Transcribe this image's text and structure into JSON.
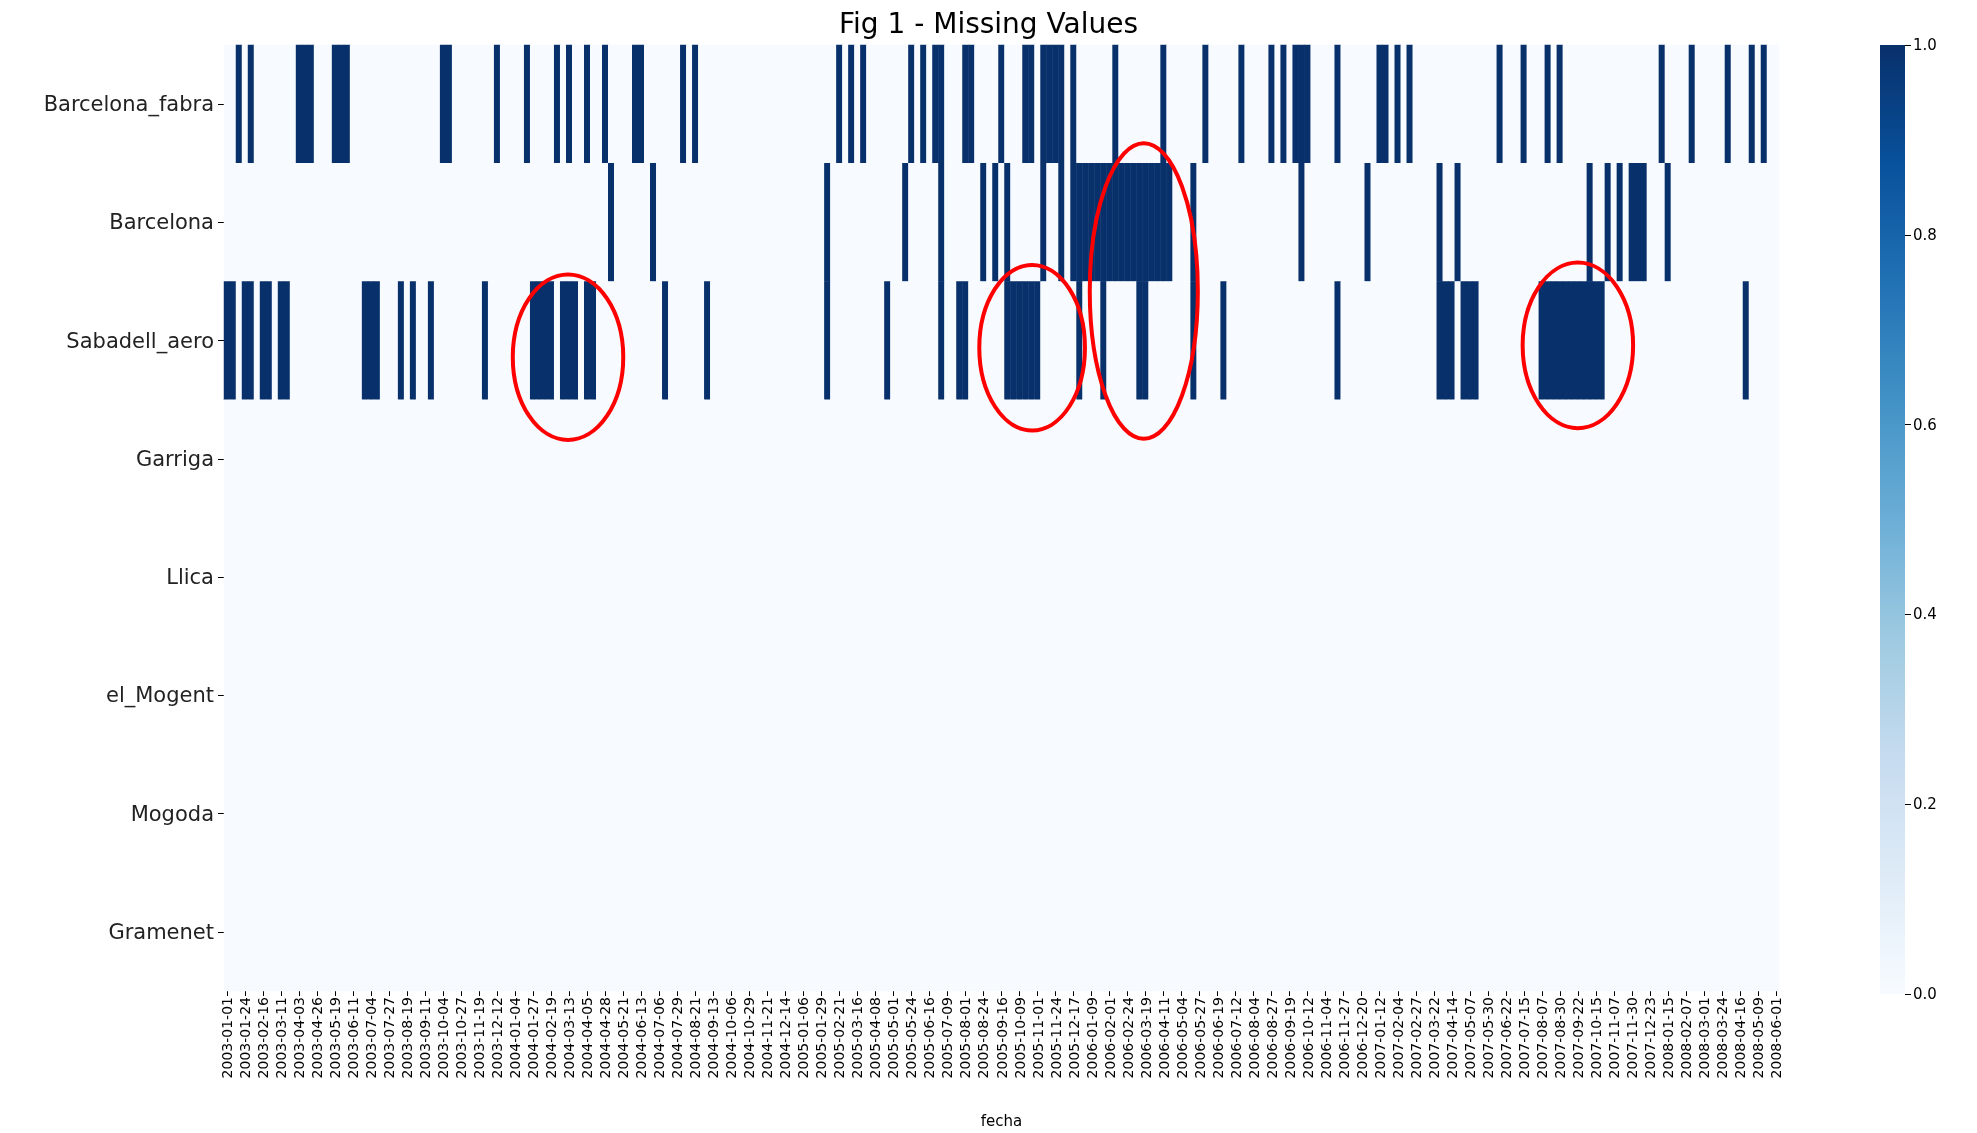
{
  "chart_data": {
    "type": "heatmap",
    "title": "Fig 1 - Missing Values",
    "xlabel": "fecha",
    "categories": [
      "2003-01-01",
      null,
      null,
      "2003-01-24",
      null,
      null,
      "2003-02-16",
      null,
      null,
      "2003-03-11",
      null,
      null,
      "2003-04-03",
      null,
      null,
      "2003-04-26",
      null,
      null,
      "2003-05-19",
      null,
      null,
      "2003-06-11",
      null,
      null,
      "2003-07-04",
      null,
      null,
      "2003-07-27",
      null,
      null,
      "2003-08-19",
      null,
      null,
      "2003-09-11",
      null,
      null,
      "2003-10-04",
      null,
      null,
      "2003-10-27",
      null,
      null,
      "2003-11-19",
      null,
      null,
      "2003-12-12",
      null,
      null,
      "2004-01-04",
      null,
      null,
      "2004-01-27",
      null,
      null,
      "2004-02-19",
      null,
      null,
      "2004-03-13",
      null,
      null,
      "2004-04-05",
      null,
      null,
      "2004-04-28",
      null,
      null,
      "2004-05-21",
      null,
      null,
      "2004-06-13",
      null,
      null,
      "2004-07-06",
      null,
      null,
      "2004-07-29",
      null,
      null,
      "2004-08-21",
      null,
      null,
      "2004-09-13",
      null,
      null,
      "2004-10-06",
      null,
      null,
      "2004-10-29",
      null,
      null,
      "2004-11-21",
      null,
      null,
      "2004-12-14",
      null,
      null,
      "2005-01-06",
      null,
      null,
      "2005-01-29",
      null,
      null,
      "2005-02-21",
      null,
      null,
      "2005-03-16",
      null,
      null,
      "2005-04-08",
      null,
      null,
      "2005-05-01",
      null,
      null,
      "2005-05-24",
      null,
      null,
      "2005-06-16",
      null,
      null,
      "2005-07-09",
      null,
      null,
      "2005-08-01",
      null,
      null,
      "2005-08-24",
      null,
      null,
      "2005-09-16",
      null,
      null,
      "2005-10-09",
      null,
      null,
      "2005-11-01",
      null,
      null,
      "2005-11-24",
      null,
      null,
      "2005-12-17",
      null,
      null,
      "2006-01-09",
      null,
      null,
      "2006-02-01",
      null,
      null,
      "2006-02-24",
      null,
      null,
      "2006-03-19",
      null,
      null,
      "2006-04-11",
      null,
      null,
      "2006-05-04",
      null,
      null,
      "2006-05-27",
      null,
      null,
      "2006-06-19",
      null,
      null,
      "2006-07-12",
      null,
      null,
      "2006-08-04",
      null,
      null,
      "2006-08-27",
      null,
      null,
      "2006-09-19",
      null,
      null,
      "2006-10-12",
      null,
      null,
      "2006-11-04",
      null,
      null,
      "2006-11-27",
      null,
      null,
      "2006-12-20",
      null,
      null,
      "2007-01-12",
      null,
      null,
      "2007-02-04",
      null,
      null,
      "2007-02-27",
      null,
      null,
      "2007-03-22",
      null,
      null,
      "2007-04-14",
      null,
      null,
      "2007-05-07",
      null,
      null,
      "2007-05-30",
      null,
      null,
      "2007-06-22",
      null,
      null,
      "2007-07-15",
      null,
      null,
      "2007-08-07",
      null,
      null,
      "2007-08-30",
      null,
      null,
      "2007-09-22",
      null,
      null,
      "2007-10-15",
      null,
      null,
      "2007-11-07",
      null,
      null,
      "2007-11-30",
      null,
      null,
      "2007-12-23",
      null,
      null,
      "2008-01-15",
      null,
      null,
      "2008-02-07",
      null,
      null,
      "2008-03-01",
      null,
      null,
      "2008-03-24",
      null,
      null,
      "2008-04-16",
      null,
      null,
      "2008-05-09",
      null,
      null,
      "2008-06-01"
    ],
    "y_categories": [
      "Barcelona_fabra",
      "Barcelona",
      "Sabadell_aero",
      "Garriga",
      "Llica",
      "el_Mogent",
      "Mogoda",
      "Gramenet"
    ],
    "cells": [
      [
        0,
        0,
        1,
        0,
        1,
        0,
        0,
        0,
        0,
        0,
        0,
        0,
        1,
        1,
        1,
        0,
        0,
        0,
        1,
        1,
        1,
        0,
        0,
        0,
        0,
        0,
        0,
        0,
        0,
        0,
        0,
        0,
        0,
        0,
        0,
        0,
        1,
        1,
        0,
        0,
        0,
        0,
        0,
        0,
        0,
        1,
        0,
        0,
        0,
        0,
        1,
        0,
        0,
        0,
        0,
        1,
        0,
        1,
        0,
        0,
        1,
        0,
        0,
        1,
        0,
        0,
        0,
        0,
        1,
        1,
        0,
        0,
        0,
        0,
        0,
        0,
        1,
        0,
        1,
        0,
        0,
        0,
        0,
        0,
        0,
        0,
        0,
        0,
        0,
        0,
        0,
        0,
        0,
        0,
        0,
        0,
        0,
        0,
        0,
        0,
        0,
        0,
        1,
        0,
        1,
        0,
        1,
        0,
        0,
        0,
        0,
        0,
        0,
        0,
        1,
        0,
        1,
        0,
        1,
        1,
        0,
        0,
        0,
        1,
        1,
        0,
        0,
        0,
        0,
        1,
        0,
        0,
        0,
        1,
        1,
        0,
        1,
        1,
        1,
        1,
        0,
        1,
        0,
        0,
        0,
        0,
        0,
        0,
        1,
        0,
        0,
        0,
        0,
        0,
        0,
        0,
        1,
        0,
        0,
        0,
        0,
        0,
        0,
        1,
        0,
        0,
        0,
        0,
        0,
        1,
        0,
        0,
        0,
        0,
        1,
        0,
        1,
        0,
        1,
        1,
        1,
        0,
        0,
        0,
        0,
        1,
        0,
        0,
        0,
        0,
        0,
        0,
        1,
        1,
        0,
        1,
        0,
        1,
        0,
        0,
        0,
        0,
        0,
        0,
        0,
        0,
        0,
        0,
        0,
        0,
        0,
        0,
        1,
        0,
        0,
        0,
        1,
        0,
        0,
        0,
        1,
        0,
        1,
        0,
        0,
        0,
        0,
        0,
        0,
        0,
        0,
        0,
        0,
        0,
        0,
        0,
        0,
        0,
        0,
        1,
        0,
        0,
        0,
        0,
        1,
        0,
        0,
        0,
        0,
        0,
        1,
        0,
        0,
        0,
        1,
        0,
        1,
        0,
        0
      ],
      [
        0,
        0,
        0,
        0,
        0,
        0,
        0,
        0,
        0,
        0,
        0,
        0,
        0,
        0,
        0,
        0,
        0,
        0,
        0,
        0,
        0,
        0,
        0,
        0,
        0,
        0,
        0,
        0,
        0,
        0,
        0,
        0,
        0,
        0,
        0,
        0,
        0,
        0,
        0,
        0,
        0,
        0,
        0,
        0,
        0,
        0,
        0,
        0,
        0,
        0,
        0,
        0,
        0,
        0,
        0,
        0,
        0,
        0,
        0,
        0,
        0,
        0,
        0,
        0,
        1,
        0,
        0,
        0,
        0,
        0,
        0,
        1,
        0,
        0,
        0,
        0,
        0,
        0,
        0,
        0,
        0,
        0,
        0,
        0,
        0,
        0,
        0,
        0,
        0,
        0,
        0,
        0,
        0,
        0,
        0,
        0,
        0,
        0,
        0,
        0,
        1,
        0,
        0,
        0,
        0,
        0,
        0,
        0,
        0,
        0,
        0,
        0,
        0,
        1,
        0,
        0,
        0,
        0,
        0,
        1,
        0,
        0,
        0,
        0,
        0,
        0,
        1,
        0,
        1,
        0,
        1,
        0,
        0,
        0,
        0,
        0,
        1,
        0,
        0,
        1,
        0,
        1,
        1,
        1,
        1,
        1,
        1,
        1,
        1,
        1,
        1,
        1,
        1,
        1,
        1,
        1,
        1,
        1,
        0,
        0,
        0,
        1,
        0,
        0,
        0,
        0,
        0,
        0,
        0,
        0,
        0,
        0,
        0,
        0,
        0,
        0,
        0,
        0,
        0,
        1,
        0,
        0,
        0,
        0,
        0,
        0,
        0,
        0,
        0,
        0,
        1,
        0,
        0,
        0,
        0,
        0,
        0,
        0,
        0,
        0,
        0,
        0,
        1,
        0,
        0,
        1,
        0,
        0,
        0,
        0,
        0,
        0,
        0,
        0,
        0,
        0,
        0,
        0,
        0,
        0,
        0,
        0,
        0,
        0,
        0,
        0,
        0,
        1,
        0,
        0,
        1,
        0,
        1,
        0,
        1,
        1,
        1,
        0,
        0,
        0,
        1,
        0,
        0,
        0,
        0,
        0,
        0,
        0,
        0,
        0,
        0,
        0,
        0,
        0,
        0,
        0,
        0,
        0,
        0
      ],
      [
        1,
        1,
        0,
        1,
        1,
        0,
        1,
        1,
        0,
        1,
        1,
        0,
        0,
        0,
        0,
        0,
        0,
        0,
        0,
        0,
        0,
        0,
        0,
        1,
        1,
        1,
        0,
        0,
        0,
        1,
        0,
        1,
        0,
        0,
        1,
        0,
        0,
        0,
        0,
        0,
        0,
        0,
        0,
        1,
        0,
        0,
        0,
        0,
        0,
        0,
        0,
        1,
        1,
        1,
        1,
        0,
        1,
        1,
        1,
        0,
        1,
        1,
        0,
        0,
        0,
        0,
        0,
        0,
        0,
        0,
        0,
        0,
        0,
        1,
        0,
        0,
        0,
        0,
        0,
        0,
        1,
        0,
        0,
        0,
        0,
        0,
        0,
        0,
        0,
        0,
        0,
        0,
        0,
        0,
        0,
        0,
        0,
        0,
        0,
        0,
        1,
        0,
        0,
        0,
        0,
        0,
        0,
        0,
        0,
        0,
        1,
        0,
        0,
        0,
        0,
        0,
        0,
        0,
        0,
        1,
        0,
        0,
        1,
        1,
        0,
        0,
        0,
        0,
        0,
        0,
        1,
        1,
        1,
        1,
        1,
        1,
        0,
        0,
        0,
        0,
        0,
        0,
        1,
        0,
        0,
        0,
        1,
        0,
        0,
        0,
        0,
        0,
        1,
        1,
        0,
        0,
        0,
        0,
        0,
        0,
        0,
        1,
        0,
        0,
        0,
        0,
        1,
        0,
        0,
        0,
        0,
        0,
        0,
        0,
        0,
        0,
        0,
        0,
        0,
        0,
        0,
        0,
        0,
        0,
        0,
        1,
        0,
        0,
        0,
        0,
        0,
        0,
        0,
        0,
        0,
        0,
        0,
        0,
        0,
        0,
        0,
        0,
        1,
        1,
        1,
        0,
        1,
        1,
        1,
        0,
        0,
        0,
        0,
        0,
        0,
        0,
        0,
        0,
        0,
        1,
        1,
        1,
        1,
        1,
        1,
        1,
        1,
        1,
        1,
        1,
        0,
        0,
        0,
        0,
        0,
        0,
        0,
        0,
        0,
        0,
        0,
        0,
        0,
        0,
        0,
        0,
        0,
        0,
        0,
        0,
        0,
        0,
        0,
        1,
        0,
        0,
        0,
        0,
        0
      ],
      [
        0,
        0,
        0,
        0,
        0,
        0,
        0,
        0,
        0,
        0,
        0,
        0,
        0,
        0,
        0,
        0,
        0,
        0,
        0,
        0,
        0,
        0,
        0,
        0,
        0,
        0,
        0,
        0,
        0,
        0,
        0,
        0,
        0,
        0,
        0,
        0,
        0,
        0,
        0,
        0,
        0,
        0,
        0,
        0,
        0,
        0,
        0,
        0,
        0,
        0,
        0,
        0,
        0,
        0,
        0,
        0,
        0,
        0,
        0,
        0,
        0,
        0,
        0,
        0,
        0,
        0,
        0,
        0,
        0,
        0,
        0,
        0,
        0,
        0,
        0,
        0,
        0,
        0,
        0,
        0,
        0,
        0,
        0,
        0,
        0,
        0,
        0,
        0,
        0,
        0,
        0,
        0,
        0,
        0,
        0,
        0,
        0,
        0,
        0,
        0,
        0,
        0,
        0,
        0,
        0,
        0,
        0,
        0,
        0,
        0,
        0,
        0,
        0,
        0,
        0,
        0,
        0,
        0,
        0,
        0,
        0,
        0,
        0,
        0,
        0,
        0,
        0,
        0,
        0,
        0,
        0,
        0,
        0,
        0,
        0,
        0,
        0,
        0,
        0,
        0,
        0,
        0,
        0,
        0,
        0,
        0,
        0,
        0,
        0,
        0,
        0,
        0,
        0,
        0,
        0,
        0,
        0,
        0,
        0,
        0,
        0,
        0,
        0,
        0,
        0,
        0,
        0,
        0,
        0,
        0,
        0,
        0,
        0,
        0,
        0,
        0,
        0,
        0,
        0,
        0,
        0,
        0,
        0,
        0,
        0,
        0,
        0,
        0,
        0,
        0,
        0,
        0,
        0,
        0,
        0,
        0,
        0,
        0,
        0,
        0,
        0,
        0,
        0,
        0,
        0,
        0,
        0,
        0,
        0,
        0,
        0,
        0,
        0,
        0,
        0,
        0,
        0,
        0,
        0,
        0,
        0,
        0,
        0,
        0,
        0,
        0,
        0,
        0,
        0,
        0,
        0,
        0,
        0,
        0,
        0,
        0,
        0,
        0,
        0,
        0,
        0,
        0,
        0,
        0,
        0,
        0,
        0,
        0,
        0,
        0,
        0,
        0,
        0,
        0,
        0,
        0,
        0,
        0,
        0
      ],
      [
        0,
        0,
        0,
        0,
        0,
        0,
        0,
        0,
        0,
        0,
        0,
        0,
        0,
        0,
        0,
        0,
        0,
        0,
        0,
        0,
        0,
        0,
        0,
        0,
        0,
        0,
        0,
        0,
        0,
        0,
        0,
        0,
        0,
        0,
        0,
        0,
        0,
        0,
        0,
        0,
        0,
        0,
        0,
        0,
        0,
        0,
        0,
        0,
        0,
        0,
        0,
        0,
        0,
        0,
        0,
        0,
        0,
        0,
        0,
        0,
        0,
        0,
        0,
        0,
        0,
        0,
        0,
        0,
        0,
        0,
        0,
        0,
        0,
        0,
        0,
        0,
        0,
        0,
        0,
        0,
        0,
        0,
        0,
        0,
        0,
        0,
        0,
        0,
        0,
        0,
        0,
        0,
        0,
        0,
        0,
        0,
        0,
        0,
        0,
        0,
        0,
        0,
        0,
        0,
        0,
        0,
        0,
        0,
        0,
        0,
        0,
        0,
        0,
        0,
        0,
        0,
        0,
        0,
        0,
        0,
        0,
        0,
        0,
        0,
        0,
        0,
        0,
        0,
        0,
        0,
        0,
        0,
        0,
        0,
        0,
        0,
        0,
        0,
        0,
        0,
        0,
        0,
        0,
        0,
        0,
        0,
        0,
        0,
        0,
        0,
        0,
        0,
        0,
        0,
        0,
        0,
        0,
        0,
        0,
        0,
        0,
        0,
        0,
        0,
        0,
        0,
        0,
        0,
        0,
        0,
        0,
        0,
        0,
        0,
        0,
        0,
        0,
        0,
        0,
        0,
        0,
        0,
        0,
        0,
        0,
        0,
        0,
        0,
        0,
        0,
        0,
        0,
        0,
        0,
        0,
        0,
        0,
        0,
        0,
        0,
        0,
        0,
        0,
        0,
        0,
        0,
        0,
        0,
        0,
        0,
        0,
        0,
        0,
        0,
        0,
        0,
        0,
        0,
        0,
        0,
        0,
        0,
        0,
        0,
        0,
        0,
        0,
        0,
        0,
        0,
        0,
        0,
        0,
        0,
        0,
        0,
        0,
        0,
        0,
        0,
        0,
        0,
        0,
        0,
        0,
        0,
        0,
        0,
        0,
        0,
        0,
        0,
        0,
        0,
        0,
        0,
        0,
        0,
        0
      ],
      [
        0,
        0,
        0,
        0,
        0,
        0,
        0,
        0,
        0,
        0,
        0,
        0,
        0,
        0,
        0,
        0,
        0,
        0,
        0,
        0,
        0,
        0,
        0,
        0,
        0,
        0,
        0,
        0,
        0,
        0,
        0,
        0,
        0,
        0,
        0,
        0,
        0,
        0,
        0,
        0,
        0,
        0,
        0,
        0,
        0,
        0,
        0,
        0,
        0,
        0,
        0,
        0,
        0,
        0,
        0,
        0,
        0,
        0,
        0,
        0,
        0,
        0,
        0,
        0,
        0,
        0,
        0,
        0,
        0,
        0,
        0,
        0,
        0,
        0,
        0,
        0,
        0,
        0,
        0,
        0,
        0,
        0,
        0,
        0,
        0,
        0,
        0,
        0,
        0,
        0,
        0,
        0,
        0,
        0,
        0,
        0,
        0,
        0,
        0,
        0,
        0,
        0,
        0,
        0,
        0,
        0,
        0,
        0,
        0,
        0,
        0,
        0,
        0,
        0,
        0,
        0,
        0,
        0,
        0,
        0,
        0,
        0,
        0,
        0,
        0,
        0,
        0,
        0,
        0,
        0,
        0,
        0,
        0,
        0,
        0,
        0,
        0,
        0,
        0,
        0,
        0,
        0,
        0,
        0,
        0,
        0,
        0,
        0,
        0,
        0,
        0,
        0,
        0,
        0,
        0,
        0,
        0,
        0,
        0,
        0,
        0,
        0,
        0,
        0,
        0,
        0,
        0,
        0,
        0,
        0,
        0,
        0,
        0,
        0,
        0,
        0,
        0,
        0,
        0,
        0,
        0,
        0,
        0,
        0,
        0,
        0,
        0,
        0,
        0,
        0,
        0,
        0,
        0,
        0,
        0,
        0,
        0,
        0,
        0,
        0,
        0,
        0,
        0,
        0,
        0,
        0,
        0,
        0,
        0,
        0,
        0,
        0,
        0,
        0,
        0,
        0,
        0,
        0,
        0,
        0,
        0,
        0,
        0,
        0,
        0,
        0,
        0,
        0,
        0,
        0,
        0,
        0,
        0,
        0,
        0,
        0,
        0,
        0,
        0,
        0,
        0,
        0,
        0,
        0,
        0,
        0,
        0,
        0,
        0,
        0,
        0,
        0,
        0,
        0,
        0,
        0,
        0,
        0,
        0
      ],
      [
        0,
        0,
        0,
        0,
        0,
        0,
        0,
        0,
        0,
        0,
        0,
        0,
        0,
        0,
        0,
        0,
        0,
        0,
        0,
        0,
        0,
        0,
        0,
        0,
        0,
        0,
        0,
        0,
        0,
        0,
        0,
        0,
        0,
        0,
        0,
        0,
        0,
        0,
        0,
        0,
        0,
        0,
        0,
        0,
        0,
        0,
        0,
        0,
        0,
        0,
        0,
        0,
        0,
        0,
        0,
        0,
        0,
        0,
        0,
        0,
        0,
        0,
        0,
        0,
        0,
        0,
        0,
        0,
        0,
        0,
        0,
        0,
        0,
        0,
        0,
        0,
        0,
        0,
        0,
        0,
        0,
        0,
        0,
        0,
        0,
        0,
        0,
        0,
        0,
        0,
        0,
        0,
        0,
        0,
        0,
        0,
        0,
        0,
        0,
        0,
        0,
        0,
        0,
        0,
        0,
        0,
        0,
        0,
        0,
        0,
        0,
        0,
        0,
        0,
        0,
        0,
        0,
        0,
        0,
        0,
        0,
        0,
        0,
        0,
        0,
        0,
        0,
        0,
        0,
        0,
        0,
        0,
        0,
        0,
        0,
        0,
        0,
        0,
        0,
        0,
        0,
        0,
        0,
        0,
        0,
        0,
        0,
        0,
        0,
        0,
        0,
        0,
        0,
        0,
        0,
        0,
        0,
        0,
        0,
        0,
        0,
        0,
        0,
        0,
        0,
        0,
        0,
        0,
        0,
        0,
        0,
        0,
        0,
        0,
        0,
        0,
        0,
        0,
        0,
        0,
        0,
        0,
        0,
        0,
        0,
        0,
        0,
        0,
        0,
        0,
        0,
        0,
        0,
        0,
        0,
        0,
        0,
        0,
        0,
        0,
        0,
        0,
        0,
        0,
        0,
        0,
        0,
        0,
        0,
        0,
        0,
        0,
        0,
        0,
        0,
        0,
        0,
        0,
        0,
        0,
        0,
        0,
        0,
        0,
        0,
        0,
        0,
        0,
        0,
        0,
        0,
        0,
        0,
        0,
        0,
        0,
        0,
        0,
        0,
        0,
        0,
        0,
        0,
        0,
        0,
        0,
        0,
        0,
        0,
        0,
        0,
        0,
        0,
        0,
        0,
        0,
        0,
        0,
        0
      ],
      [
        0,
        0,
        0,
        0,
        0,
        0,
        0,
        0,
        0,
        0,
        0,
        0,
        0,
        0,
        0,
        0,
        0,
        0,
        0,
        0,
        0,
        0,
        0,
        0,
        0,
        0,
        0,
        0,
        0,
        0,
        0,
        0,
        0,
        0,
        0,
        0,
        0,
        0,
        0,
        0,
        0,
        0,
        0,
        0,
        0,
        0,
        0,
        0,
        0,
        0,
        0,
        0,
        0,
        0,
        0,
        0,
        0,
        0,
        0,
        0,
        0,
        0,
        0,
        0,
        0,
        0,
        0,
        0,
        0,
        0,
        0,
        0,
        0,
        0,
        0,
        0,
        0,
        0,
        0,
        0,
        0,
        0,
        0,
        0,
        0,
        0,
        0,
        0,
        0,
        0,
        0,
        0,
        0,
        0,
        0,
        0,
        0,
        0,
        0,
        0,
        0,
        0,
        0,
        0,
        0,
        0,
        0,
        0,
        0,
        0,
        0,
        0,
        0,
        0,
        0,
        0,
        0,
        0,
        0,
        0,
        0,
        0,
        0,
        0,
        0,
        0,
        0,
        0,
        0,
        0,
        0,
        0,
        0,
        0,
        0,
        0,
        0,
        0,
        0,
        0,
        0,
        0,
        0,
        0,
        0,
        0,
        0,
        0,
        0,
        0,
        0,
        0,
        0,
        0,
        0,
        0,
        0,
        0,
        0,
        0,
        0,
        0,
        0,
        0,
        0,
        0,
        0,
        0,
        0,
        0,
        0,
        0,
        0,
        0,
        0,
        0,
        0,
        0,
        0,
        0,
        0,
        0,
        0,
        0,
        0,
        0,
        0,
        0,
        0,
        0,
        0,
        0,
        0,
        0,
        0,
        0,
        0,
        0,
        0,
        0,
        0,
        0,
        0,
        0,
        0,
        0,
        0,
        0,
        0,
        0,
        0,
        0,
        0,
        0,
        0,
        0,
        0,
        0,
        0,
        0,
        0,
        0,
        0,
        0,
        0,
        0,
        0,
        0,
        0,
        0,
        0,
        0,
        0,
        0,
        0,
        0,
        0,
        0,
        0,
        0,
        0,
        0,
        0,
        0,
        0,
        0,
        0,
        0,
        0,
        0,
        0,
        0,
        0,
        0,
        0,
        0,
        0,
        0,
        0
      ]
    ],
    "clim": [
      0,
      1
    ],
    "cticks": [
      {
        "value": 0,
        "label": "0.0"
      },
      {
        "value": 0.2,
        "label": "0.2"
      },
      {
        "value": 0.4,
        "label": "0.4"
      },
      {
        "value": 0.6,
        "label": "0.6"
      },
      {
        "value": 0.8,
        "label": "0.8"
      },
      {
        "value": 1,
        "label": "1.0"
      }
    ]
  }
}
